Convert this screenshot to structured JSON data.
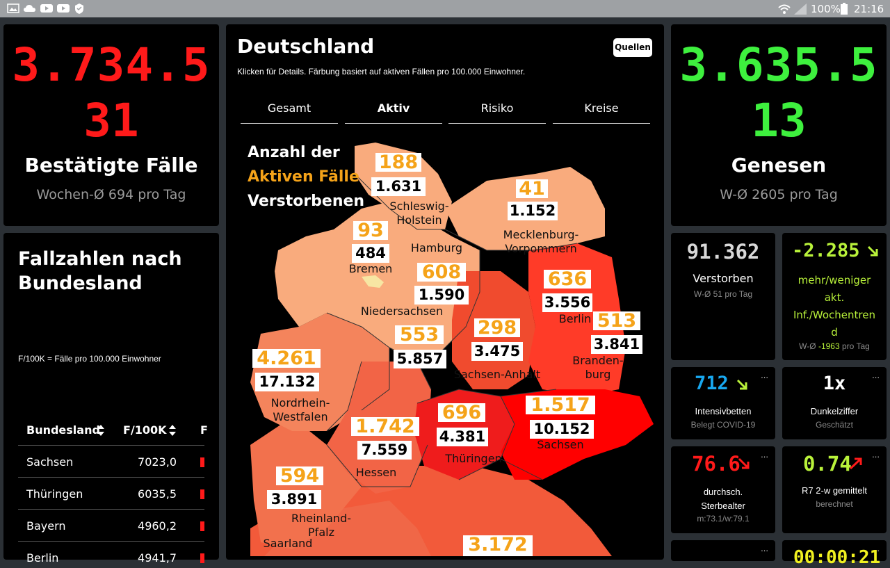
{
  "statusbar": {
    "battery": "100%",
    "time": "21:16"
  },
  "left": {
    "confirmed_number": "3.734.5",
    "confirmed_number_line2": "31",
    "confirmed_label": "Bestätigte Fälle",
    "confirmed_avg": "Wochen-Ø 694 pro Tag"
  },
  "table_panel": {
    "title_line1": "Fallzahlen nach",
    "title_line2": "Bundesland",
    "note": "F/100K = Fälle pro 100.000 Einwohner",
    "headers": [
      "Bundesland",
      "F/100K",
      "F"
    ],
    "rows": [
      {
        "name": "Sachsen",
        "value": "7023,0"
      },
      {
        "name": "Thüringen",
        "value": "6035,5"
      },
      {
        "name": "Bayern",
        "value": "4960,2"
      },
      {
        "name": "Berlin",
        "value": "4941,7"
      }
    ]
  },
  "map_panel": {
    "title": "Deutschland",
    "subtitle": "Klicken für Details. Färbung basiert auf aktiven Fällen pro 100.000 Einwohner.",
    "sources_button": "Quellen",
    "tabs": [
      "Gesamt",
      "Aktiv",
      "Risiko",
      "Kreise"
    ],
    "legend": {
      "line1": "Anzahl der",
      "line2": "Aktiven Fälle",
      "line3": "Verstorbenen"
    },
    "states": [
      {
        "name_l1": "Schleswig-",
        "name_l2": "Holstein",
        "active": "188",
        "deaths": "1.631"
      },
      {
        "name_l1": "Mecklenburg-",
        "name_l2": "Vorpommern",
        "active": "41",
        "deaths": "1.152"
      },
      {
        "name_l1": "Hamburg",
        "name_l2": ""
      },
      {
        "name_l1": "Bremen",
        "name_l2": "",
        "active": "93",
        "deaths": "484"
      },
      {
        "name_l1": "Niedersachsen",
        "name_l2": "",
        "active": "608",
        "deaths": "1.590"
      },
      {
        "name_l1": "Berlin",
        "name_l2": "",
        "active": "636",
        "deaths": "3.556"
      },
      {
        "name_l1": "Branden-",
        "name_l2": "burg",
        "active": "513",
        "deaths": "3.841"
      },
      {
        "name_l1": "Sachsen-Anhalt",
        "name_l2": "",
        "active": "298",
        "deaths": "3.475"
      },
      {
        "name_l1": "Nordrhein-",
        "name_l2": "Westfalen",
        "active": "4.261",
        "deaths": "17.132"
      },
      {
        "name_l1": "",
        "name_l2": "",
        "active": "553",
        "deaths": "5.857"
      },
      {
        "name_l1": "Hessen",
        "name_l2": "",
        "active": "1.742",
        "deaths": "7.559"
      },
      {
        "name_l1": "Thüringen",
        "name_l2": "",
        "active": "696",
        "deaths": "4.381"
      },
      {
        "name_l1": "Sachsen",
        "name_l2": "",
        "active": "1.517",
        "deaths": "10.152"
      },
      {
        "name_l1": "Rheinland-",
        "name_l2": "Pfalz",
        "active": "594",
        "deaths": "3.891"
      },
      {
        "name_l1": "Saarland",
        "name_l2": ""
      },
      {
        "name_l1": "",
        "name_l2": "",
        "active": "3.172",
        "deaths": ""
      }
    ]
  },
  "right": {
    "recovered_number": "3.635.5",
    "recovered_number_line2": "13",
    "recovered_label": "Genesen",
    "recovered_avg": "W-Ø 2605 pro Tag"
  },
  "cards": {
    "deaths": {
      "value": "91.362",
      "label": "Verstorben",
      "sub": "W-Ø 51 pro Tag"
    },
    "trend": {
      "value": "-2.285",
      "label_l1": "mehr/weniger",
      "label_l2": "akt.",
      "label_l3": "Inf./Wochentren",
      "label_l4": "d",
      "sub_prefix": "W-Ø ",
      "sub_value": "-1963",
      "sub_suffix": " pro Tag"
    },
    "icu": {
      "value": "712",
      "label": "Intensivbetten",
      "sub": "Belegt COVID-19"
    },
    "dark": {
      "value": "1x",
      "label": "Dunkelziffer",
      "sub": "Geschätzt"
    },
    "age": {
      "value": "76.6",
      "label_l1": "durchsch.",
      "label_l2": "Sterbealter",
      "sub": "m:73.1/w:79.1"
    },
    "r": {
      "value": "0.74",
      "label": "R7 2-w gemittelt",
      "sub": "berechnet"
    },
    "time_partial": "00:00:21",
    "dots": "..."
  },
  "colors": {
    "red": "#ff1a1a",
    "green": "#3ef03e",
    "lime": "#b9f23a",
    "blue": "#18a8f0",
    "orange": "#f5a319",
    "panel": "#000000",
    "background": "#2b3035"
  }
}
